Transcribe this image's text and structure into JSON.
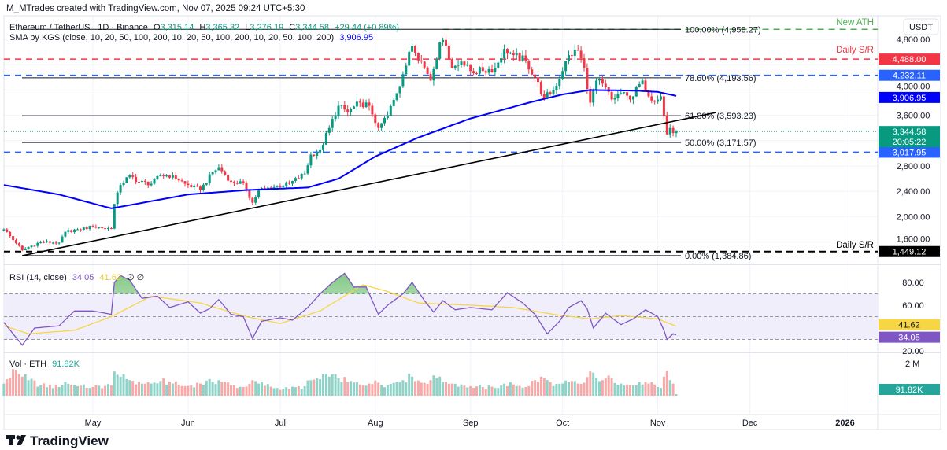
{
  "header": {
    "credit": "M_MTrades created with TradingView.com, Nov 07, 2025 09:24 UTC+5:30"
  },
  "legend": {
    "symbol": "Ethereum / TetherUS · 1D · Binance",
    "o_label": "O",
    "o": "3,315.14",
    "h_label": "H",
    "h": "3,365.32",
    "l_label": "L",
    "l": "3,276.19",
    "c_label": "C",
    "c": "3,344.58",
    "change": "+29.44 (+0.89%)",
    "sma_label": "SMA by KGS (close, 10, 20, 50, 100, 200, 10, 20, 50, 100, 200, 10, 20, 50, 100, 200)",
    "sma_value": "3,906.95"
  },
  "currency_button": "USDT",
  "colors": {
    "up": "#089981",
    "down": "#f23645",
    "sma": "#0000ff",
    "rsi": "#7e57c2",
    "rsi_ma": "#f7d646",
    "level_blue": "#2962ff",
    "ath": "#4caf50"
  },
  "annotations": {
    "new_ath": "New ATH",
    "daily_sr_top": "Daily S/R",
    "daily_sr_bottom": "Daily S/R"
  },
  "fib_levels": [
    {
      "label": "100.00% (4,958.27)",
      "price": 4958.27
    },
    {
      "label": "78.60% (4,193.56)",
      "price": 4193.56
    },
    {
      "label": "61.80% (3,593.23)",
      "price": 3593.23
    },
    {
      "label": "50.00% (3,171.57)",
      "price": 3171.57
    },
    {
      "label": "0.00% (1,384.86)",
      "price": 1384.86
    }
  ],
  "price_labels": [
    {
      "text": "4,488.00",
      "price": 4488.0,
      "color": "#f23645"
    },
    {
      "text": "4,232.11",
      "price": 4232.11,
      "color": "#2962ff"
    },
    {
      "text": "3,906.95",
      "price": 3906.95,
      "color": "#0000ff"
    },
    {
      "text": "3,017.95",
      "price": 3017.95,
      "color": "#2962ff"
    },
    {
      "text": "1,449.12",
      "price": 1449.12,
      "color": "#000000"
    }
  ],
  "last_price": {
    "text": "3,344.58",
    "countdown": "20:05:22",
    "color": "#089981"
  },
  "price_axis": {
    "ticks": [
      "4,800.00",
      "4,000.00",
      "3,600.00",
      "2,800.00",
      "2,400.00",
      "2,000.00",
      "1,600.00"
    ],
    "tick_values": [
      4800,
      4000,
      3600,
      2800,
      2400,
      2000,
      1600
    ]
  },
  "time_axis": {
    "labels": [
      "May",
      "Jun",
      "Jul",
      "Aug",
      "Sep",
      "Oct",
      "Nov",
      "Dec",
      "2026"
    ],
    "dates": [
      "2025-05-01",
      "2025-06-01",
      "2025-07-01",
      "2025-08-01",
      "2025-09-01",
      "2025-10-01",
      "2025-11-01",
      "2025-12-01",
      "2026-01-01"
    ]
  },
  "rsi": {
    "label": "RSI (14, close)",
    "value": "34.05",
    "ma_value": "41.62",
    "extra": "∅ ∅",
    "ticks": [
      "80.00",
      "60.00",
      "20.00"
    ],
    "tick_values": [
      80,
      60,
      20
    ],
    "bands": [
      70,
      50,
      30
    ]
  },
  "volume": {
    "label": "Vol · ETH",
    "value": "91.82K",
    "axis_label": "2 M",
    "axis_value": 2000
  },
  "brand": {
    "logo_text": "TradingView"
  },
  "chart_data": {
    "type": "candlestick",
    "symbol": "ETHUSDT",
    "interval": "1D",
    "ylim": [
      1250,
      5000
    ],
    "grid": true,
    "candles": [
      {
        "date": "2025-04-02",
        "close": 1800,
        "volume_k": 700
      },
      {
        "date": "2025-04-06",
        "close": 1580,
        "volume_k": 1500
      },
      {
        "date": "2025-04-08",
        "close": 1470,
        "volume_k": 1100
      },
      {
        "date": "2025-04-10",
        "close": 1520,
        "volume_k": 900
      },
      {
        "date": "2025-04-14",
        "close": 1600,
        "volume_k": 600
      },
      {
        "date": "2025-04-20",
        "close": 1590,
        "volume_k": 500
      },
      {
        "date": "2025-04-22",
        "close": 1760,
        "volume_k": 800
      },
      {
        "date": "2025-04-26",
        "close": 1800,
        "volume_k": 550
      },
      {
        "date": "2025-05-01",
        "close": 1840,
        "volume_k": 500
      },
      {
        "date": "2025-05-07",
        "close": 1810,
        "volume_k": 600
      },
      {
        "date": "2025-05-08",
        "close": 2200,
        "volume_k": 1400
      },
      {
        "date": "2025-05-10",
        "close": 2500,
        "volume_k": 1100
      },
      {
        "date": "2025-05-13",
        "close": 2650,
        "volume_k": 900
      },
      {
        "date": "2025-05-16",
        "close": 2550,
        "volume_k": 800
      },
      {
        "date": "2025-05-20",
        "close": 2520,
        "volume_k": 700
      },
      {
        "date": "2025-05-23",
        "close": 2650,
        "volume_k": 850
      },
      {
        "date": "2025-05-27",
        "close": 2650,
        "volume_k": 700
      },
      {
        "date": "2025-05-31",
        "close": 2520,
        "volume_k": 550
      },
      {
        "date": "2025-06-05",
        "close": 2420,
        "volume_k": 700
      },
      {
        "date": "2025-06-09",
        "close": 2700,
        "volume_k": 800
      },
      {
        "date": "2025-06-11",
        "close": 2780,
        "volume_k": 900
      },
      {
        "date": "2025-06-15",
        "close": 2550,
        "volume_k": 600
      },
      {
        "date": "2025-06-19",
        "close": 2530,
        "volume_k": 500
      },
      {
        "date": "2025-06-22",
        "close": 2220,
        "volume_k": 900
      },
      {
        "date": "2025-06-24",
        "close": 2420,
        "volume_k": 700
      },
      {
        "date": "2025-06-30",
        "close": 2480,
        "volume_k": 450
      },
      {
        "date": "2025-07-04",
        "close": 2520,
        "volume_k": 400
      },
      {
        "date": "2025-07-09",
        "close": 2680,
        "volume_k": 550
      },
      {
        "date": "2025-07-11",
        "close": 2980,
        "volume_k": 900
      },
      {
        "date": "2025-07-14",
        "close": 3050,
        "volume_k": 950
      },
      {
        "date": "2025-07-17",
        "close": 3400,
        "volume_k": 1100
      },
      {
        "date": "2025-07-20",
        "close": 3750,
        "volume_k": 1000
      },
      {
        "date": "2025-07-23",
        "close": 3650,
        "volume_k": 800
      },
      {
        "date": "2025-07-27",
        "close": 3800,
        "volume_k": 650
      },
      {
        "date": "2025-07-30",
        "close": 3750,
        "volume_k": 700
      },
      {
        "date": "2025-08-02",
        "close": 3400,
        "volume_k": 750
      },
      {
        "date": "2025-08-05",
        "close": 3600,
        "volume_k": 600
      },
      {
        "date": "2025-08-08",
        "close": 3950,
        "volume_k": 800
      },
      {
        "date": "2025-08-10",
        "close": 4250,
        "volume_k": 900
      },
      {
        "date": "2025-08-13",
        "close": 4700,
        "volume_k": 1100
      },
      {
        "date": "2025-08-16",
        "close": 4450,
        "volume_k": 750
      },
      {
        "date": "2025-08-19",
        "close": 4150,
        "volume_k": 900
      },
      {
        "date": "2025-08-22",
        "close": 4750,
        "volume_k": 1100
      },
      {
        "date": "2025-08-24",
        "close": 4700,
        "volume_k": 800
      },
      {
        "date": "2025-08-26",
        "close": 4350,
        "volume_k": 700
      },
      {
        "date": "2025-08-29",
        "close": 4450,
        "volume_k": 650
      },
      {
        "date": "2025-09-01",
        "close": 4300,
        "volume_k": 550
      },
      {
        "date": "2025-09-05",
        "close": 4300,
        "volume_k": 500
      },
      {
        "date": "2025-09-09",
        "close": 4350,
        "volume_k": 450
      },
      {
        "date": "2025-09-12",
        "close": 4650,
        "volume_k": 700
      },
      {
        "date": "2025-09-15",
        "close": 4550,
        "volume_k": 650
      },
      {
        "date": "2025-09-19",
        "close": 4460,
        "volume_k": 500
      },
      {
        "date": "2025-09-22",
        "close": 4200,
        "volume_k": 900
      },
      {
        "date": "2025-09-25",
        "close": 3870,
        "volume_k": 1000
      },
      {
        "date": "2025-09-28",
        "close": 4000,
        "volume_k": 550
      },
      {
        "date": "2025-10-01",
        "close": 4300,
        "volume_k": 700
      },
      {
        "date": "2025-10-03",
        "close": 4550,
        "volume_k": 800
      },
      {
        "date": "2025-10-06",
        "close": 4620,
        "volume_k": 700
      },
      {
        "date": "2025-10-08",
        "close": 4350,
        "volume_k": 750
      },
      {
        "date": "2025-10-10",
        "close": 3800,
        "volume_k": 1400
      },
      {
        "date": "2025-10-12",
        "close": 4150,
        "volume_k": 1000
      },
      {
        "date": "2025-10-14",
        "close": 4100,
        "volume_k": 900
      },
      {
        "date": "2025-10-17",
        "close": 3850,
        "volume_k": 1000
      },
      {
        "date": "2025-10-20",
        "close": 3950,
        "volume_k": 700
      },
      {
        "date": "2025-10-23",
        "close": 3850,
        "volume_k": 600
      },
      {
        "date": "2025-10-27",
        "close": 4150,
        "volume_k": 650
      },
      {
        "date": "2025-10-29",
        "close": 3900,
        "volume_k": 700
      },
      {
        "date": "2025-11-01",
        "close": 3850,
        "volume_k": 500
      },
      {
        "date": "2025-11-02",
        "close": 3900,
        "volume_k": 450
      },
      {
        "date": "2025-11-03",
        "close": 3600,
        "volume_k": 1100
      },
      {
        "date": "2025-11-04",
        "close": 3300,
        "volume_k": 1450
      },
      {
        "date": "2025-11-05",
        "close": 3400,
        "volume_k": 900
      },
      {
        "date": "2025-11-06",
        "close": 3320,
        "volume_k": 700
      },
      {
        "date": "2025-11-07",
        "close": 3344.58,
        "volume_k": 91.82
      }
    ],
    "sma": [
      {
        "date": "2025-04-02",
        "value": 2500
      },
      {
        "date": "2025-04-20",
        "value": 2350
      },
      {
        "date": "2025-05-07",
        "value": 2130
      },
      {
        "date": "2025-06-01",
        "value": 2350
      },
      {
        "date": "2025-06-20",
        "value": 2420
      },
      {
        "date": "2025-07-10",
        "value": 2460
      },
      {
        "date": "2025-07-20",
        "value": 2600
      },
      {
        "date": "2025-08-01",
        "value": 2950
      },
      {
        "date": "2025-08-15",
        "value": 3250
      },
      {
        "date": "2025-09-01",
        "value": 3550
      },
      {
        "date": "2025-09-20",
        "value": 3800
      },
      {
        "date": "2025-10-01",
        "value": 3930
      },
      {
        "date": "2025-10-10",
        "value": 4000
      },
      {
        "date": "2025-10-25",
        "value": 3990
      },
      {
        "date": "2025-11-01",
        "value": 3970
      },
      {
        "date": "2025-11-07",
        "value": 3906.95
      }
    ],
    "trendline": {
      "start": {
        "date": "2025-04-08",
        "price": 1385
      },
      "end": {
        "date": "2025-11-20",
        "price": 3645
      }
    },
    "levels": [
      {
        "name": "new-ath",
        "price": 4958.27,
        "style": "dashed",
        "color": "#4caf50",
        "from": "2025-08-23"
      },
      {
        "name": "daily-sr-top",
        "price": 4488.0,
        "style": "dashed",
        "color": "#f23645"
      },
      {
        "name": "level-4232",
        "price": 4232.11,
        "style": "dashed",
        "color": "#2962ff"
      },
      {
        "name": "level-3017",
        "price": 3017.95,
        "style": "dashed",
        "color": "#2962ff"
      },
      {
        "name": "daily-sr-bottom",
        "price": 1449.12,
        "style": "dashed",
        "color": "#000000"
      }
    ],
    "rsi_series": [
      {
        "date": "2025-04-02",
        "rsi": 45
      },
      {
        "date": "2025-04-08",
        "rsi": 25
      },
      {
        "date": "2025-04-12",
        "rsi": 40
      },
      {
        "date": "2025-04-20",
        "rsi": 42
      },
      {
        "date": "2025-04-25",
        "rsi": 55
      },
      {
        "date": "2025-05-01",
        "rsi": 55
      },
      {
        "date": "2025-05-07",
        "rsi": 52
      },
      {
        "date": "2025-05-08",
        "rsi": 80
      },
      {
        "date": "2025-05-10",
        "rsi": 86
      },
      {
        "date": "2025-05-13",
        "rsi": 82
      },
      {
        "date": "2025-05-17",
        "rsi": 66
      },
      {
        "date": "2025-05-22",
        "rsi": 68
      },
      {
        "date": "2025-05-26",
        "rsi": 58
      },
      {
        "date": "2025-06-01",
        "rsi": 63
      },
      {
        "date": "2025-06-05",
        "rsi": 53
      },
      {
        "date": "2025-06-08",
        "rsi": 57
      },
      {
        "date": "2025-06-11",
        "rsi": 65
      },
      {
        "date": "2025-06-15",
        "rsi": 52
      },
      {
        "date": "2025-06-19",
        "rsi": 50
      },
      {
        "date": "2025-06-22",
        "rsi": 31
      },
      {
        "date": "2025-06-25",
        "rsi": 46
      },
      {
        "date": "2025-07-01",
        "rsi": 49
      },
      {
        "date": "2025-07-05",
        "rsi": 47
      },
      {
        "date": "2025-07-10",
        "rsi": 58
      },
      {
        "date": "2025-07-14",
        "rsi": 70
      },
      {
        "date": "2025-07-18",
        "rsi": 80
      },
      {
        "date": "2025-07-22",
        "rsi": 88
      },
      {
        "date": "2025-07-25",
        "rsi": 76
      },
      {
        "date": "2025-07-29",
        "rsi": 76
      },
      {
        "date": "2025-08-02",
        "rsi": 52
      },
      {
        "date": "2025-08-05",
        "rsi": 60
      },
      {
        "date": "2025-08-10",
        "rsi": 70
      },
      {
        "date": "2025-08-13",
        "rsi": 80
      },
      {
        "date": "2025-08-17",
        "rsi": 64
      },
      {
        "date": "2025-08-20",
        "rsi": 54
      },
      {
        "date": "2025-08-23",
        "rsi": 64
      },
      {
        "date": "2025-08-27",
        "rsi": 56
      },
      {
        "date": "2025-09-01",
        "rsi": 58
      },
      {
        "date": "2025-09-08",
        "rsi": 56
      },
      {
        "date": "2025-09-13",
        "rsi": 71
      },
      {
        "date": "2025-09-18",
        "rsi": 62
      },
      {
        "date": "2025-09-22",
        "rsi": 52
      },
      {
        "date": "2025-09-26",
        "rsi": 35
      },
      {
        "date": "2025-09-30",
        "rsi": 46
      },
      {
        "date": "2025-10-03",
        "rsi": 58
      },
      {
        "date": "2025-10-07",
        "rsi": 64
      },
      {
        "date": "2025-10-09",
        "rsi": 57
      },
      {
        "date": "2025-10-11",
        "rsi": 40
      },
      {
        "date": "2025-10-15",
        "rsi": 53
      },
      {
        "date": "2025-10-20",
        "rsi": 43
      },
      {
        "date": "2025-10-24",
        "rsi": 48
      },
      {
        "date": "2025-10-28",
        "rsi": 56
      },
      {
        "date": "2025-11-01",
        "rsi": 50
      },
      {
        "date": "2025-11-03",
        "rsi": 38
      },
      {
        "date": "2025-11-04",
        "rsi": 30
      },
      {
        "date": "2025-11-06",
        "rsi": 35
      },
      {
        "date": "2025-11-07",
        "rsi": 34.05
      }
    ],
    "rsi_ma_series": [
      {
        "date": "2025-04-02",
        "value": 42
      },
      {
        "date": "2025-04-10",
        "value": 35
      },
      {
        "date": "2025-04-25",
        "value": 38
      },
      {
        "date": "2025-05-07",
        "value": 50
      },
      {
        "date": "2025-05-20",
        "value": 68
      },
      {
        "date": "2025-06-05",
        "value": 62
      },
      {
        "date": "2025-06-20",
        "value": 50
      },
      {
        "date": "2025-07-01",
        "value": 44
      },
      {
        "date": "2025-07-14",
        "value": 55
      },
      {
        "date": "2025-07-28",
        "value": 78
      },
      {
        "date": "2025-08-05",
        "value": 72
      },
      {
        "date": "2025-08-15",
        "value": 62
      },
      {
        "date": "2025-09-01",
        "value": 60
      },
      {
        "date": "2025-09-15",
        "value": 58
      },
      {
        "date": "2025-09-28",
        "value": 52
      },
      {
        "date": "2025-10-10",
        "value": 48
      },
      {
        "date": "2025-10-20",
        "value": 51
      },
      {
        "date": "2025-11-01",
        "value": 48
      },
      {
        "date": "2025-11-07",
        "value": 41.62
      }
    ]
  }
}
